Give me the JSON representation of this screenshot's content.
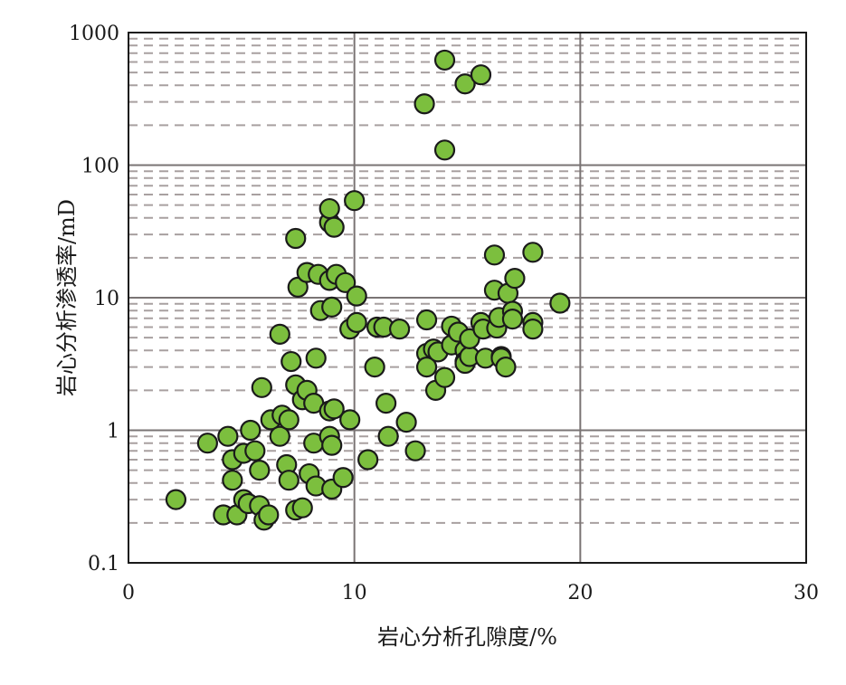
{
  "chart_data": {
    "type": "scatter",
    "title": "",
    "xlabel": "岩心分析孔隙度/%",
    "ylabel": "岩心分析渗透率/mD",
    "xlim": [
      0,
      30
    ],
    "ylim": [
      0.1,
      1000
    ],
    "yscale": "log",
    "grid": true,
    "x_ticks": [
      0,
      10,
      20,
      30
    ],
    "x_tick_labels": [
      "0",
      "10",
      "20",
      "30"
    ],
    "y_ticks": [
      0.1,
      1,
      10,
      100,
      1000
    ],
    "y_tick_labels": [
      "0.1",
      "1",
      "10",
      "100",
      "1000"
    ],
    "marker_color": "#7cbf3e",
    "marker_edge_color": "#1a1a1a",
    "points": [
      [
        2.1,
        0.3
      ],
      [
        3.5,
        0.8
      ],
      [
        4.2,
        0.23
      ],
      [
        4.4,
        0.9
      ],
      [
        4.6,
        0.42
      ],
      [
        4.6,
        0.6
      ],
      [
        4.8,
        0.23
      ],
      [
        5.1,
        0.3
      ],
      [
        5.1,
        0.67
      ],
      [
        5.3,
        0.28
      ],
      [
        5.4,
        1.0
      ],
      [
        5.6,
        0.7
      ],
      [
        5.8,
        0.27
      ],
      [
        5.8,
        0.5
      ],
      [
        5.9,
        2.1
      ],
      [
        6.0,
        0.21
      ],
      [
        6.2,
        0.23
      ],
      [
        6.3,
        1.2
      ],
      [
        6.7,
        0.9
      ],
      [
        6.7,
        5.3
      ],
      [
        6.8,
        1.3
      ],
      [
        7.0,
        0.55
      ],
      [
        7.1,
        0.42
      ],
      [
        7.1,
        1.2
      ],
      [
        7.2,
        3.3
      ],
      [
        7.4,
        2.2
      ],
      [
        7.4,
        0.25
      ],
      [
        7.4,
        28
      ],
      [
        7.5,
        12
      ],
      [
        7.7,
        0.26
      ],
      [
        7.7,
        1.7
      ],
      [
        7.9,
        2.0
      ],
      [
        7.9,
        15.5
      ],
      [
        8.0,
        0.47
      ],
      [
        8.2,
        1.6
      ],
      [
        8.2,
        0.8
      ],
      [
        8.3,
        0.38
      ],
      [
        8.3,
        3.5
      ],
      [
        8.4,
        15
      ],
      [
        8.5,
        8
      ],
      [
        8.9,
        0.9
      ],
      [
        8.9,
        1.4
      ],
      [
        8.9,
        13.5
      ],
      [
        8.9,
        37
      ],
      [
        8.9,
        47
      ],
      [
        9.0,
        0.36
      ],
      [
        9.0,
        8.5
      ],
      [
        9.0,
        0.77
      ],
      [
        9.1,
        1.45
      ],
      [
        9.1,
        34
      ],
      [
        9.2,
        15
      ],
      [
        9.5,
        0.44
      ],
      [
        9.6,
        13
      ],
      [
        9.8,
        5.8
      ],
      [
        9.8,
        1.2
      ],
      [
        10.0,
        54
      ],
      [
        10.1,
        10.3
      ],
      [
        10.1,
        6.5
      ],
      [
        10.6,
        0.6
      ],
      [
        10.9,
        3.0
      ],
      [
        11.0,
        6.0
      ],
      [
        11.3,
        6.0
      ],
      [
        11.4,
        1.6
      ],
      [
        11.5,
        0.9
      ],
      [
        12.0,
        5.8
      ],
      [
        12.3,
        1.15
      ],
      [
        12.7,
        0.7
      ],
      [
        13.1,
        290
      ],
      [
        13.2,
        6.8
      ],
      [
        13.2,
        3.8
      ],
      [
        13.2,
        3.0
      ],
      [
        13.5,
        4.1
      ],
      [
        13.6,
        2.0
      ],
      [
        13.7,
        3.9
      ],
      [
        14.0,
        130
      ],
      [
        14.0,
        620
      ],
      [
        14.0,
        2.5
      ],
      [
        14.3,
        6.1
      ],
      [
        14.3,
        4.4
      ],
      [
        14.6,
        5.5
      ],
      [
        14.9,
        410
      ],
      [
        14.9,
        4.0
      ],
      [
        14.9,
        3.3
      ],
      [
        14.9,
        3.2
      ],
      [
        15.1,
        3.6
      ],
      [
        15.1,
        4.9
      ],
      [
        15.6,
        480
      ],
      [
        15.6,
        6.5
      ],
      [
        15.7,
        5.8
      ],
      [
        15.8,
        3.5
      ],
      [
        16.2,
        21
      ],
      [
        16.2,
        11.4
      ],
      [
        16.3,
        5.9
      ],
      [
        16.4,
        7.1
      ],
      [
        16.5,
        3.6
      ],
      [
        16.5,
        3.5
      ],
      [
        16.7,
        3.0
      ],
      [
        16.8,
        10.8
      ],
      [
        17.0,
        7.9
      ],
      [
        17.0,
        6.9
      ],
      [
        17.1,
        14
      ],
      [
        17.9,
        22
      ],
      [
        17.9,
        6.5
      ],
      [
        17.9,
        5.8
      ],
      [
        19.1,
        9.1
      ]
    ]
  }
}
